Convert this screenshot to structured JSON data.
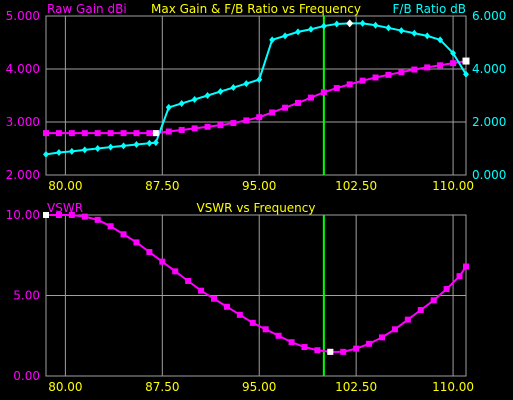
{
  "colors": {
    "background": "#000000",
    "gain": "#ff00ff",
    "fb": "#00ffff",
    "title": "#ffff00",
    "grid": "#a0a0a0",
    "cursor": "#00ff00",
    "marker": "#ffffff",
    "tick": "#ffff00"
  },
  "chart_data": [
    {
      "type": "line",
      "title": "Max Gain & F/B Ratio vs Frequency",
      "ylabel_left": "Raw Gain dBi",
      "ylabel_right": "F/B Ratio dB",
      "xlim": [
        78.5,
        111
      ],
      "ylim_left": [
        2.0,
        5.0
      ],
      "ylim_right": [
        0.0,
        6.0
      ],
      "xticks": [
        "80.00",
        "87.50",
        "95.00",
        "102.50",
        "110.00"
      ],
      "yticks_left": [
        "2.000",
        "3.000",
        "4.000",
        "5.000"
      ],
      "yticks_right": [
        "0.000",
        "2.000",
        "4.000",
        "6.000"
      ],
      "grid": true,
      "cursor_x": 100,
      "x": [
        78.5,
        79.5,
        80.5,
        81.5,
        82.5,
        83.5,
        84.5,
        85.5,
        86.5,
        87.0,
        88.0,
        89.0,
        90.0,
        91.0,
        92.0,
        93.0,
        94.0,
        95.0,
        96.0,
        97.0,
        98.0,
        99.0,
        100.0,
        101.0,
        102.0,
        103.0,
        104.0,
        105.0,
        106.0,
        107.0,
        108.0,
        109.0,
        110.0,
        111.0
      ],
      "series": [
        {
          "name": "Raw Gain dBi",
          "axis": "left",
          "values": [
            2.79,
            2.79,
            2.79,
            2.79,
            2.79,
            2.79,
            2.79,
            2.79,
            2.79,
            2.79,
            2.82,
            2.85,
            2.88,
            2.91,
            2.94,
            2.98,
            3.03,
            3.09,
            3.18,
            3.27,
            3.36,
            3.46,
            3.56,
            3.64,
            3.71,
            3.78,
            3.84,
            3.89,
            3.94,
            3.99,
            4.03,
            4.07,
            4.11,
            4.15
          ]
        },
        {
          "name": "F/B Ratio dB",
          "axis": "right",
          "values": [
            0.78,
            0.85,
            0.89,
            0.95,
            1.0,
            1.05,
            1.1,
            1.15,
            1.2,
            1.22,
            2.55,
            2.7,
            2.85,
            3.0,
            3.15,
            3.3,
            3.45,
            3.6,
            5.1,
            5.25,
            5.4,
            5.5,
            5.62,
            5.7,
            5.72,
            5.72,
            5.65,
            5.55,
            5.45,
            5.35,
            5.25,
            5.1,
            4.6,
            3.8
          ]
        }
      ]
    },
    {
      "type": "line",
      "title": "VSWR vs Frequency",
      "ylabel": "VSWR",
      "xlim": [
        78.5,
        111
      ],
      "ylim": [
        0.0,
        10.0
      ],
      "xticks": [
        "80.00",
        "87.50",
        "95.00",
        "102.50",
        "110.00"
      ],
      "yticks": [
        "0.00",
        "5.00",
        "10.00"
      ],
      "grid": true,
      "cursor_x": 100,
      "x": [
        78.5,
        79.5,
        80.5,
        81.5,
        82.5,
        83.5,
        84.5,
        85.5,
        86.5,
        87.5,
        88.5,
        89.5,
        90.5,
        91.5,
        92.5,
        93.5,
        94.5,
        95.5,
        96.5,
        97.5,
        98.5,
        99.5,
        100.5,
        101.5,
        102.5,
        103.5,
        104.5,
        105.5,
        106.5,
        107.5,
        108.5,
        109.5,
        110.5,
        111.0
      ],
      "series": [
        {
          "name": "VSWR",
          "values": [
            10.0,
            10.0,
            10.0,
            9.9,
            9.7,
            9.3,
            8.8,
            8.3,
            7.7,
            7.1,
            6.5,
            5.9,
            5.3,
            4.8,
            4.3,
            3.8,
            3.3,
            2.9,
            2.5,
            2.1,
            1.8,
            1.6,
            1.5,
            1.5,
            1.7,
            2.0,
            2.4,
            2.9,
            3.5,
            4.1,
            4.7,
            5.4,
            6.2,
            6.8
          ]
        }
      ]
    }
  ]
}
